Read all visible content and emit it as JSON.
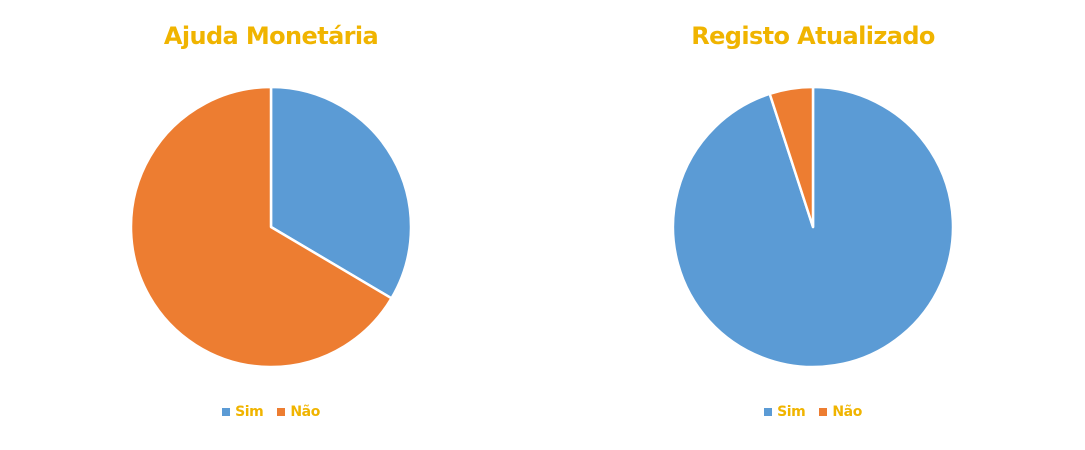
{
  "colors": {
    "title_text": "#f0b400",
    "sim": "#5b9bd5",
    "nao": "#ed7d31",
    "slice_border": "#ffffff"
  },
  "chart_data": [
    {
      "type": "pie",
      "title": "Ajuda Monetária",
      "start_angle_deg": 0,
      "direction": "clockwise",
      "legend_position": "bottom",
      "series": [
        {
          "name": "Sim",
          "value": 33.5,
          "color": "#5b9bd5"
        },
        {
          "name": "Não",
          "value": 66.5,
          "color": "#ed7d31"
        }
      ]
    },
    {
      "type": "pie",
      "title": "Registo Atualizado",
      "start_angle_deg": 0,
      "direction": "clockwise",
      "legend_position": "bottom",
      "series": [
        {
          "name": "Sim",
          "value": 95,
          "color": "#5b9bd5"
        },
        {
          "name": "Não",
          "value": 5,
          "color": "#ed7d31"
        }
      ]
    }
  ]
}
